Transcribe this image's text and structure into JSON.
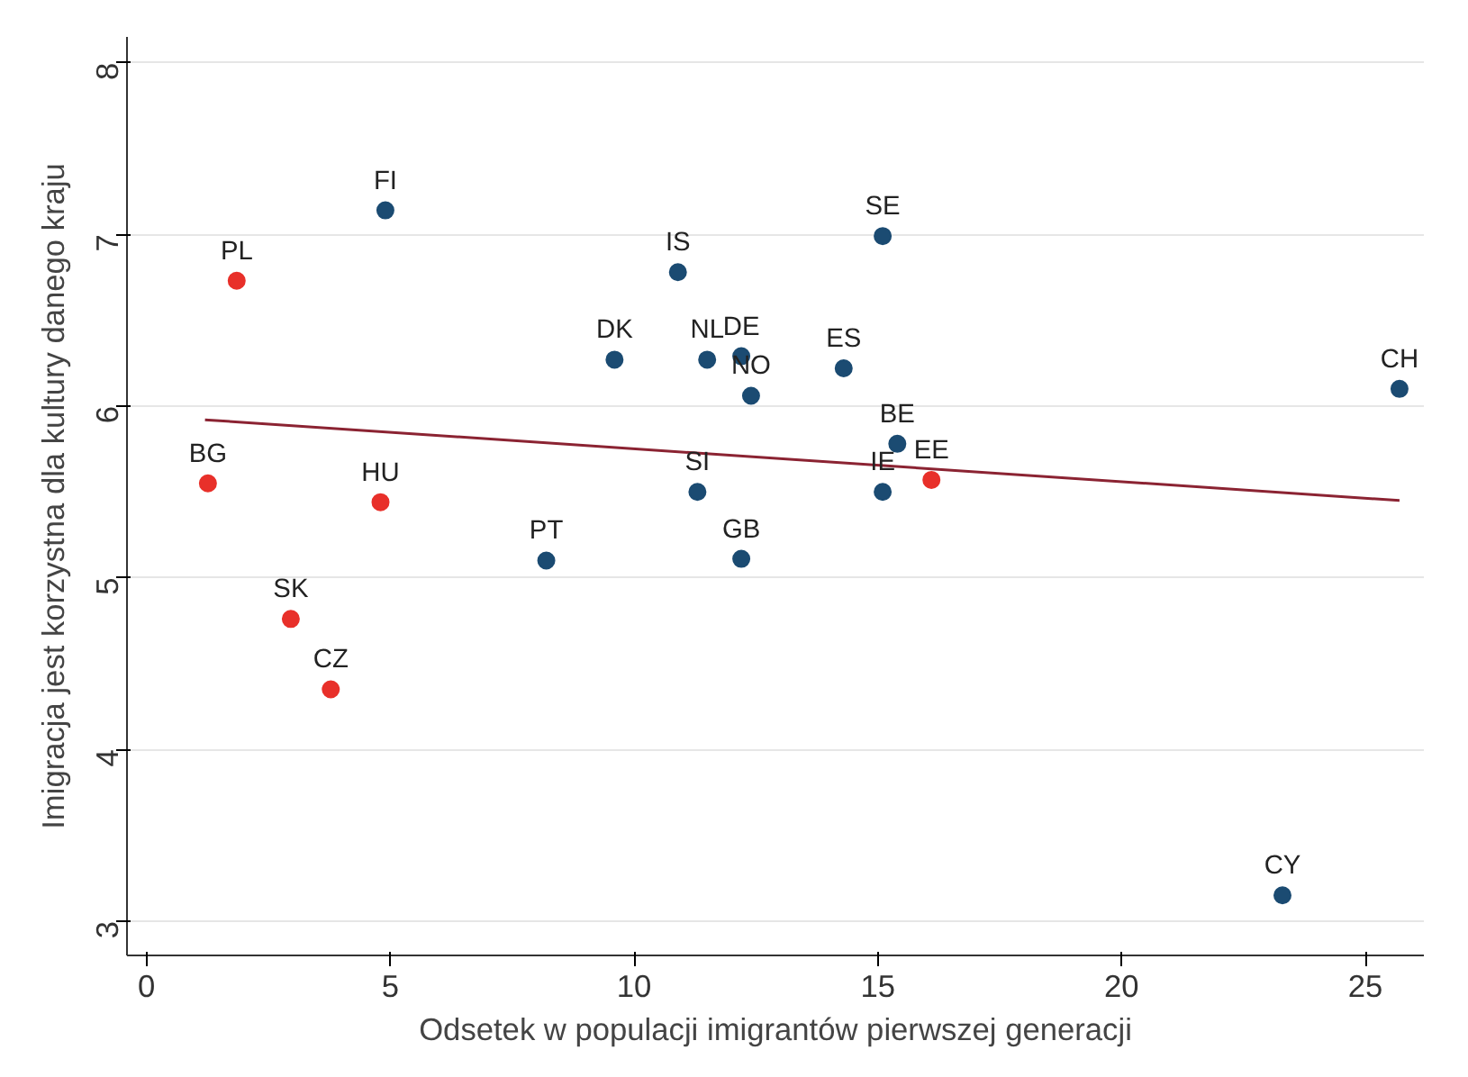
{
  "chart_data": {
    "type": "scatter",
    "xlabel": "Odsetek w populacji imigrantów pierwszej generacji",
    "ylabel": "Imigracja jest korzystna dla kultury danego kraju",
    "xlim": [
      -0.4,
      26.2
    ],
    "ylim": [
      2.8,
      8.15
    ],
    "xticks": [
      0,
      5,
      10,
      15,
      20,
      25
    ],
    "yticks": [
      3,
      4,
      5,
      6,
      7,
      8
    ],
    "grid": "y",
    "marker": "circle",
    "series": [
      {
        "color": "#1b4b72",
        "x": [
          4.9,
          10.9,
          15.1,
          9.6,
          11.5,
          12.2,
          14.3,
          12.4,
          25.7,
          15.4,
          11.3,
          15.1,
          8.2,
          12.2,
          23.3
        ],
        "values": [
          7.14,
          6.78,
          6.99,
          6.27,
          6.27,
          6.29,
          6.22,
          6.06,
          6.1,
          5.78,
          5.5,
          5.5,
          5.1,
          5.11,
          3.15
        ]
      },
      {
        "color": "#e8302a",
        "x": [
          1.85,
          1.26,
          4.8,
          16.1,
          2.96,
          3.78
        ],
        "values": [
          6.73,
          5.55,
          5.44,
          5.57,
          4.76,
          4.35
        ]
      },
      {
        "type": "line",
        "color": "#8b2332",
        "x": [
          1.2,
          25.7
        ],
        "values": [
          5.92,
          5.45
        ],
        "marker": "none"
      }
    ],
    "annotations": [
      {
        "text": "FI",
        "x": 4.9,
        "y": 7.14
      },
      {
        "text": "IS",
        "x": 10.9,
        "y": 6.78
      },
      {
        "text": "SE",
        "x": 15.1,
        "y": 6.99
      },
      {
        "text": "DK",
        "x": 9.6,
        "y": 6.27
      },
      {
        "text": "NL",
        "x": 11.5,
        "y": 6.27
      },
      {
        "text": "DE",
        "x": 12.2,
        "y": 6.29
      },
      {
        "text": "ES",
        "x": 14.3,
        "y": 6.22
      },
      {
        "text": "NO",
        "x": 12.4,
        "y": 6.06
      },
      {
        "text": "CH",
        "x": 25.7,
        "y": 6.1
      },
      {
        "text": "BE",
        "x": 15.4,
        "y": 5.78
      },
      {
        "text": "SI",
        "x": 11.3,
        "y": 5.5
      },
      {
        "text": "IE",
        "x": 15.1,
        "y": 5.5
      },
      {
        "text": "PT",
        "x": 8.2,
        "y": 5.1
      },
      {
        "text": "GB",
        "x": 12.2,
        "y": 5.11
      },
      {
        "text": "CY",
        "x": 23.3,
        "y": 3.15
      },
      {
        "text": "PL",
        "x": 1.85,
        "y": 6.73
      },
      {
        "text": "BG",
        "x": 1.26,
        "y": 5.55
      },
      {
        "text": "HU",
        "x": 4.8,
        "y": 5.44
      },
      {
        "text": "EE",
        "x": 16.1,
        "y": 5.57
      },
      {
        "text": "SK",
        "x": 2.96,
        "y": 4.76
      },
      {
        "text": "CZ",
        "x": 3.78,
        "y": 4.35
      }
    ]
  }
}
